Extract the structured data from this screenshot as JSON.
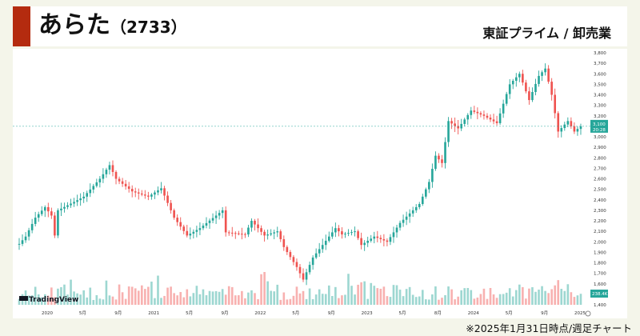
{
  "header": {
    "title": "あらた",
    "code": "（2733）",
    "market": "東証プライム / 卸売業"
  },
  "footnote": "※2025年1月31日時点/週足チャート",
  "watermark": "TradingView",
  "colors": {
    "up": "#26a69a",
    "down": "#ef5350",
    "title_bar": "#b42b0f"
  },
  "chart_data": {
    "type": "candlestick",
    "period": "weekly",
    "x_tick_labels": [
      "2020",
      "5月",
      "9月",
      "2021",
      "5月",
      "9月",
      "2022",
      "5月",
      "9月",
      "2023",
      "5月",
      "8月",
      "2024",
      "5月",
      "9月",
      "2025"
    ],
    "y_tick_labels": [
      "1,400",
      "1,500",
      "1,600",
      "1,700",
      "1,800",
      "1,900",
      "2,000",
      "2,100",
      "2,200",
      "2,300",
      "2,400",
      "2,500",
      "2,600",
      "2,700",
      "2,800",
      "2,900",
      "3,000",
      "3,100",
      "3,200",
      "3,300",
      "3,400",
      "3,500",
      "3,600",
      "3,700",
      "3,800"
    ],
    "ylim": [
      1400,
      3800
    ],
    "grid": false,
    "last_price": {
      "value": 3100,
      "label": "3,100",
      "time": "20:28"
    },
    "last_volume": {
      "label": "238.4K"
    },
    "close_path": [
      {
        "x": 0,
        "y": 1980
      },
      {
        "x": 2,
        "y": 2050
      },
      {
        "x": 5,
        "y": 2230
      },
      {
        "x": 8,
        "y": 2330
      },
      {
        "x": 10,
        "y": 2250
      },
      {
        "x": 11,
        "y": 2060
      },
      {
        "x": 12,
        "y": 2300
      },
      {
        "x": 17,
        "y": 2380
      },
      {
        "x": 20,
        "y": 2430
      },
      {
        "x": 25,
        "y": 2600
      },
      {
        "x": 28,
        "y": 2730
      },
      {
        "x": 30,
        "y": 2600
      },
      {
        "x": 35,
        "y": 2480
      },
      {
        "x": 40,
        "y": 2430
      },
      {
        "x": 44,
        "y": 2510
      },
      {
        "x": 48,
        "y": 2230
      },
      {
        "x": 52,
        "y": 2060
      },
      {
        "x": 56,
        "y": 2130
      },
      {
        "x": 61,
        "y": 2250
      },
      {
        "x": 63,
        "y": 2300
      },
      {
        "x": 64,
        "y": 2090
      },
      {
        "x": 70,
        "y": 2070
      },
      {
        "x": 72,
        "y": 2200
      },
      {
        "x": 76,
        "y": 2060
      },
      {
        "x": 80,
        "y": 2100
      },
      {
        "x": 82,
        "y": 1950
      },
      {
        "x": 86,
        "y": 1760
      },
      {
        "x": 88,
        "y": 1640
      },
      {
        "x": 91,
        "y": 1850
      },
      {
        "x": 95,
        "y": 2010
      },
      {
        "x": 98,
        "y": 2130
      },
      {
        "x": 100,
        "y": 2070
      },
      {
        "x": 104,
        "y": 2100
      },
      {
        "x": 106,
        "y": 1970
      },
      {
        "x": 110,
        "y": 2050
      },
      {
        "x": 114,
        "y": 2000
      },
      {
        "x": 118,
        "y": 2180
      },
      {
        "x": 124,
        "y": 2360
      },
      {
        "x": 127,
        "y": 2570
      },
      {
        "x": 129,
        "y": 2820
      },
      {
        "x": 131,
        "y": 2750
      },
      {
        "x": 133,
        "y": 3150
      },
      {
        "x": 136,
        "y": 3080
      },
      {
        "x": 140,
        "y": 3250
      },
      {
        "x": 144,
        "y": 3200
      },
      {
        "x": 148,
        "y": 3130
      },
      {
        "x": 152,
        "y": 3500
      },
      {
        "x": 155,
        "y": 3600
      },
      {
        "x": 158,
        "y": 3350
      },
      {
        "x": 161,
        "y": 3580
      },
      {
        "x": 163,
        "y": 3650
      },
      {
        "x": 165,
        "y": 3400
      },
      {
        "x": 167,
        "y": 3050
      },
      {
        "x": 170,
        "y": 3150
      },
      {
        "x": 172,
        "y": 3050
      },
      {
        "x": 174,
        "y": 3100
      }
    ]
  }
}
